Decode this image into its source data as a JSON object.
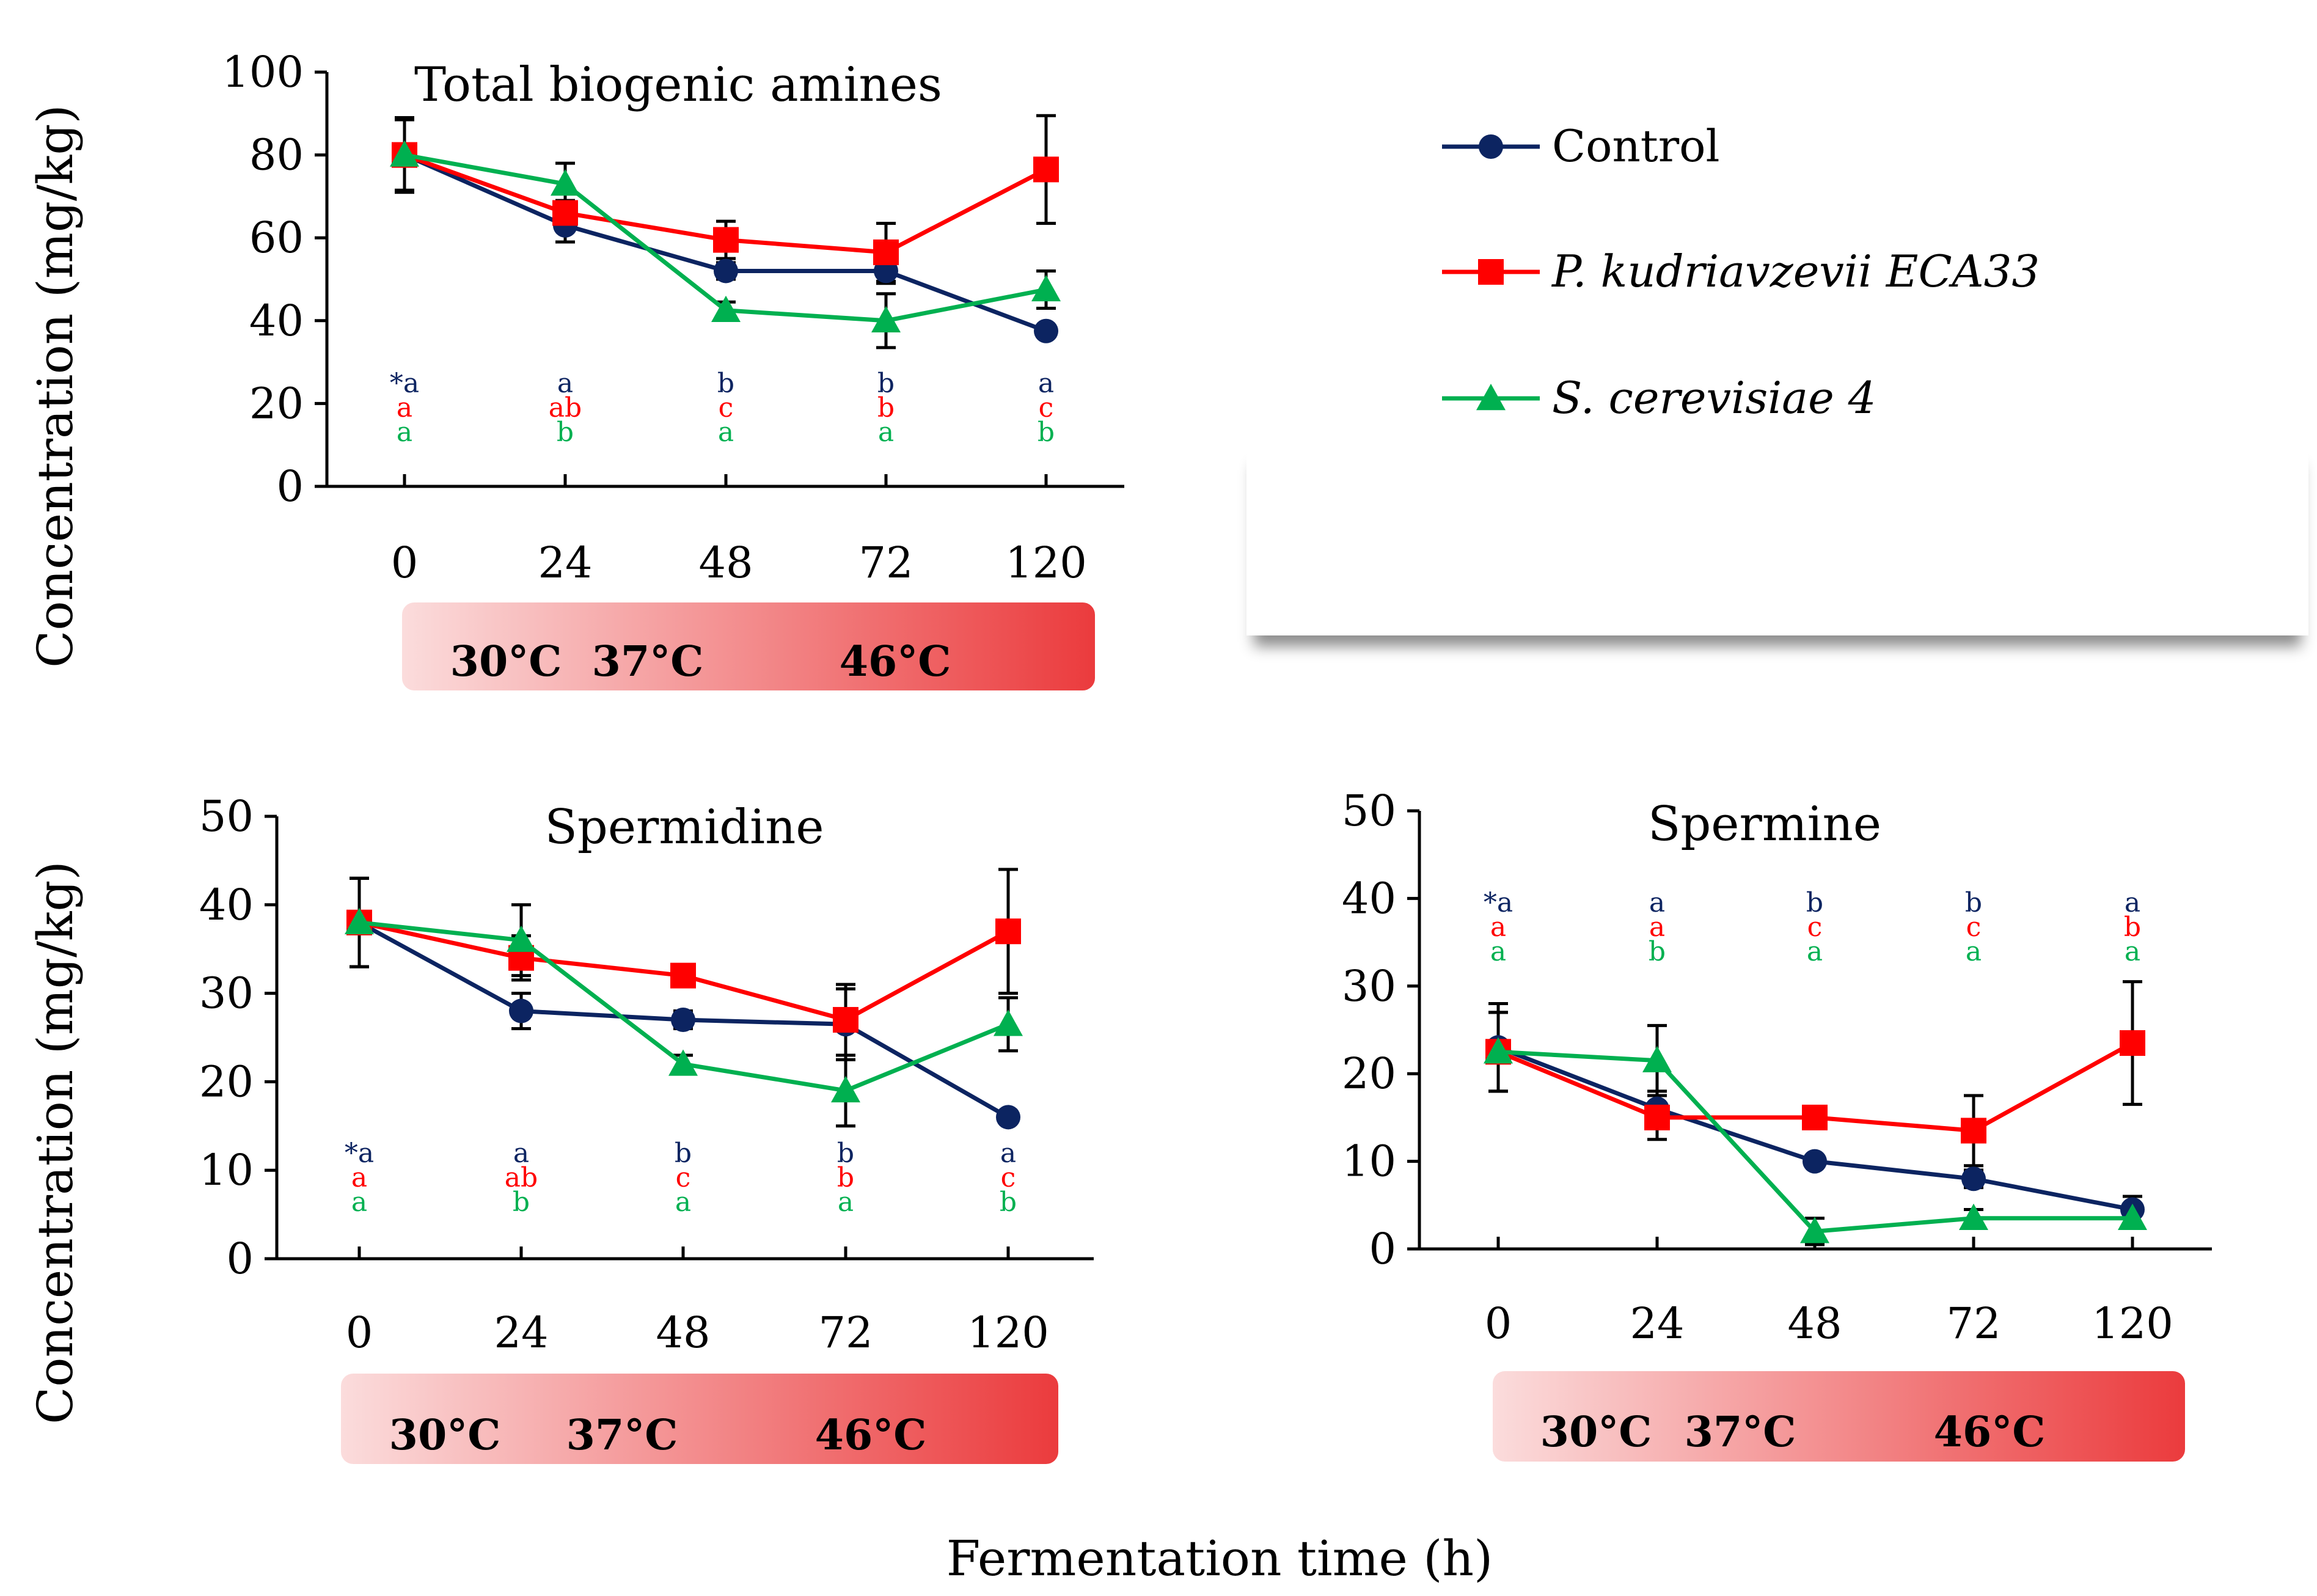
{
  "colors": {
    "control": "#0c2461",
    "pk": "#ff0000",
    "sc": "#00b050",
    "band_start": "#fbdcdc",
    "band_end": "#eb3b3d"
  },
  "legend": {
    "items": [
      {
        "label": "Control",
        "marker": "circle",
        "color": "#0c2461"
      },
      {
        "label": "P. kudriavzevii ECA33",
        "marker": "square",
        "color": "#ff0000"
      },
      {
        "label": "S. cerevisiae 4",
        "marker": "triangle",
        "color": "#00b050"
      }
    ]
  },
  "shared": {
    "xlabel": "Fermentation time (h)",
    "ylabel": "Concentration (mg/kg)",
    "temperature_band": [
      "30°C",
      "37°C",
      "46°C"
    ]
  },
  "chart_data": [
    {
      "id": "total",
      "type": "line",
      "title": "Total biogenic amines",
      "categories": [
        "0",
        "24",
        "48",
        "72",
        "120"
      ],
      "ylim": [
        0,
        100
      ],
      "yticks": [
        0,
        20,
        40,
        60,
        80,
        100
      ],
      "series": [
        {
          "name": "Control",
          "key": "control",
          "values": [
            80,
            63,
            52,
            52,
            37.5
          ],
          "errors": [
            8.5,
            4,
            2,
            3,
            1
          ]
        },
        {
          "name": "P. kudriavzevii ECA33",
          "key": "pk",
          "values": [
            80,
            66,
            59.5,
            56.5,
            76.5
          ],
          "errors": [
            9,
            3,
            4.5,
            7,
            13
          ]
        },
        {
          "name": "S. cerevisiae 4",
          "key": "sc",
          "values": [
            80,
            73,
            42.5,
            40,
            47.5
          ],
          "errors": [
            9,
            5,
            2,
            6.5,
            4.5
          ]
        }
      ],
      "letters": [
        {
          "key": "control",
          "values": [
            "*a",
            "a",
            "b",
            "b",
            "a"
          ]
        },
        {
          "key": "pk",
          "values": [
            "a",
            "ab",
            "c",
            "b",
            "c"
          ]
        },
        {
          "key": "sc",
          "values": [
            "a",
            "b",
            "a",
            "a",
            "b"
          ]
        }
      ]
    },
    {
      "id": "spermidine",
      "type": "line",
      "title": "Spermidine",
      "categories": [
        "0",
        "24",
        "48",
        "72",
        "120"
      ],
      "ylim": [
        0,
        50
      ],
      "yticks": [
        0,
        10,
        20,
        30,
        40,
        50
      ],
      "series": [
        {
          "name": "Control",
          "key": "control",
          "values": [
            38,
            28,
            27,
            26.5,
            16
          ],
          "errors": [
            5,
            2,
            1,
            4,
            0.5
          ]
        },
        {
          "name": "P. kudriavzevii ECA33",
          "key": "pk",
          "values": [
            38,
            34,
            32,
            27,
            37
          ],
          "errors": [
            5,
            2.5,
            0.5,
            4,
            7
          ]
        },
        {
          "name": "S. cerevisiae 4",
          "key": "sc",
          "values": [
            38,
            36,
            22,
            19,
            26.5
          ],
          "errors": [
            5,
            4,
            1,
            4,
            3
          ]
        }
      ],
      "letters": [
        {
          "key": "control",
          "values": [
            "*a",
            "a",
            "b",
            "b",
            "a"
          ]
        },
        {
          "key": "pk",
          "values": [
            "a",
            "ab",
            "c",
            "b",
            "c"
          ]
        },
        {
          "key": "sc",
          "values": [
            "a",
            "b",
            "a",
            "a",
            "b"
          ]
        }
      ]
    },
    {
      "id": "spermine",
      "type": "line",
      "title": "Spermine",
      "categories": [
        "0",
        "24",
        "48",
        "72",
        "120"
      ],
      "ylim": [
        0,
        50
      ],
      "yticks": [
        0,
        10,
        20,
        30,
        40,
        50
      ],
      "series": [
        {
          "name": "Control",
          "key": "control",
          "values": [
            23,
            16,
            10,
            8,
            4.5
          ],
          "errors": [
            5,
            2,
            0.5,
            1,
            1.5
          ]
        },
        {
          "name": "P. kudriavzevii ECA33",
          "key": "pk",
          "values": [
            22.5,
            15,
            15,
            13.5,
            23.5
          ],
          "errors": [
            4.5,
            2.5,
            1,
            4,
            7
          ]
        },
        {
          "name": "S. cerevisiae 4",
          "key": "sc",
          "values": [
            22.5,
            21.5,
            2,
            3.5,
            3.5
          ],
          "errors": [
            4.5,
            4,
            1.5,
            1,
            1
          ]
        }
      ],
      "letters": [
        {
          "key": "control",
          "values": [
            "*a",
            "a",
            "b",
            "b",
            "a"
          ]
        },
        {
          "key": "pk",
          "values": [
            "a",
            "a",
            "c",
            "c",
            "b"
          ]
        },
        {
          "key": "sc",
          "values": [
            "a",
            "b",
            "a",
            "a",
            "a"
          ]
        }
      ]
    }
  ]
}
